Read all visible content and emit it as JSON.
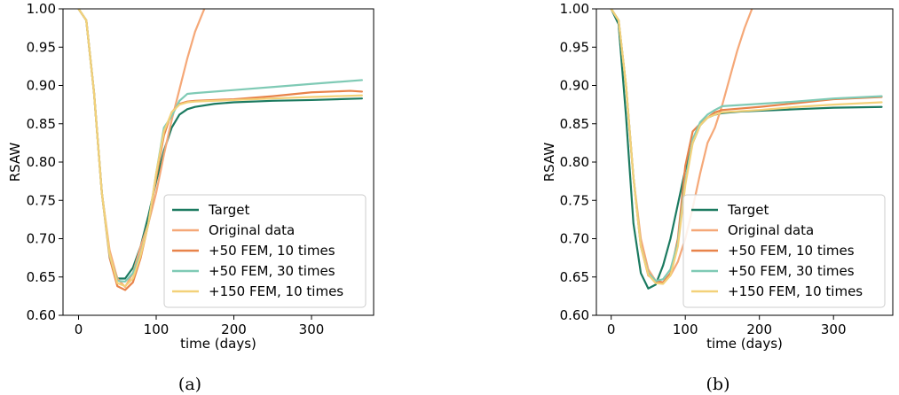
{
  "chart_data": [
    {
      "type": "line",
      "caption": "(a)",
      "xlabel": "time (days)",
      "ylabel": "RSAW",
      "xlim": [
        -20,
        380
      ],
      "ylim": [
        0.6,
        1.0
      ],
      "xticks": [
        0,
        100,
        200,
        300
      ],
      "yticks": [
        0.6,
        0.65,
        0.7,
        0.75,
        0.8,
        0.85,
        0.9,
        0.95,
        1.0
      ],
      "grid": false,
      "legend_position": "lower-right",
      "series": [
        {
          "name": "Target",
          "color": "#1b7a60",
          "x": [
            0,
            10,
            20,
            30,
            40,
            50,
            60,
            70,
            80,
            90,
            100,
            110,
            120,
            130,
            140,
            150,
            175,
            200,
            250,
            300,
            365
          ],
          "y": [
            1.0,
            0.985,
            0.89,
            0.76,
            0.68,
            0.648,
            0.648,
            0.662,
            0.69,
            0.73,
            0.775,
            0.815,
            0.845,
            0.862,
            0.869,
            0.872,
            0.876,
            0.878,
            0.88,
            0.881,
            0.883
          ]
        },
        {
          "name": "Original data",
          "color": "#f5a878",
          "x": [
            0,
            10,
            20,
            30,
            40,
            50,
            60,
            70,
            80,
            90,
            100,
            110,
            120,
            130,
            140,
            150,
            162
          ],
          "y": [
            1.0,
            0.985,
            0.89,
            0.76,
            0.685,
            0.648,
            0.637,
            0.655,
            0.69,
            0.72,
            0.76,
            0.81,
            0.855,
            0.895,
            0.935,
            0.97,
            1.0
          ]
        },
        {
          "name": "+50 FEM, 10 times",
          "color": "#e8834a",
          "x": [
            0,
            10,
            20,
            30,
            40,
            50,
            60,
            70,
            80,
            90,
            100,
            110,
            120,
            130,
            140,
            150,
            200,
            250,
            300,
            350,
            365
          ],
          "y": [
            1.0,
            0.985,
            0.89,
            0.76,
            0.675,
            0.638,
            0.633,
            0.643,
            0.675,
            0.72,
            0.78,
            0.835,
            0.865,
            0.876,
            0.879,
            0.88,
            0.882,
            0.886,
            0.891,
            0.893,
            0.892
          ]
        },
        {
          "name": "+50 FEM, 30 times",
          "color": "#7fcab5",
          "x": [
            0,
            10,
            20,
            30,
            40,
            50,
            60,
            70,
            80,
            90,
            100,
            110,
            120,
            130,
            140,
            150,
            200,
            250,
            300,
            365
          ],
          "y": [
            1.0,
            0.985,
            0.89,
            0.76,
            0.678,
            0.645,
            0.644,
            0.655,
            0.68,
            0.72,
            0.785,
            0.845,
            0.86,
            0.88,
            0.889,
            0.89,
            0.894,
            0.898,
            0.902,
            0.907
          ]
        },
        {
          "name": "+150 FEM, 10 times",
          "color": "#f3d179",
          "x": [
            0,
            10,
            20,
            30,
            40,
            50,
            60,
            70,
            80,
            90,
            100,
            110,
            120,
            130,
            140,
            150,
            200,
            250,
            300,
            365
          ],
          "y": [
            1.0,
            0.985,
            0.89,
            0.76,
            0.68,
            0.642,
            0.638,
            0.648,
            0.678,
            0.72,
            0.785,
            0.84,
            0.865,
            0.875,
            0.878,
            0.879,
            0.881,
            0.883,
            0.885,
            0.887
          ]
        }
      ]
    },
    {
      "type": "line",
      "caption": "(b)",
      "xlabel": "time (days)",
      "ylabel": "RSAW",
      "xlim": [
        -20,
        380
      ],
      "ylim": [
        0.6,
        1.0
      ],
      "xticks": [
        0,
        100,
        200,
        300
      ],
      "yticks": [
        0.6,
        0.65,
        0.7,
        0.75,
        0.8,
        0.85,
        0.9,
        0.95,
        1.0
      ],
      "grid": false,
      "legend_position": "lower-right",
      "series": [
        {
          "name": "Target",
          "color": "#1b7a60",
          "x": [
            0,
            10,
            20,
            30,
            40,
            50,
            60,
            70,
            80,
            90,
            100,
            110,
            120,
            130,
            140,
            150,
            175,
            200,
            250,
            300,
            365
          ],
          "y": [
            1.0,
            0.98,
            0.86,
            0.72,
            0.655,
            0.635,
            0.64,
            0.665,
            0.7,
            0.745,
            0.79,
            0.825,
            0.848,
            0.858,
            0.862,
            0.864,
            0.866,
            0.867,
            0.869,
            0.871,
            0.872
          ]
        },
        {
          "name": "Original data",
          "color": "#f5a878",
          "x": [
            0,
            10,
            20,
            30,
            40,
            50,
            60,
            70,
            80,
            90,
            100,
            110,
            120,
            130,
            140,
            150,
            160,
            170,
            180,
            190
          ],
          "y": [
            1.0,
            0.985,
            0.9,
            0.78,
            0.7,
            0.66,
            0.645,
            0.642,
            0.652,
            0.67,
            0.7,
            0.74,
            0.785,
            0.825,
            0.845,
            0.875,
            0.91,
            0.945,
            0.975,
            1.0
          ]
        },
        {
          "name": "+50 FEM, 10 times",
          "color": "#e8834a",
          "x": [
            0,
            10,
            20,
            30,
            40,
            50,
            60,
            70,
            80,
            90,
            100,
            110,
            120,
            130,
            140,
            150,
            200,
            250,
            300,
            365
          ],
          "y": [
            1.0,
            0.985,
            0.9,
            0.78,
            0.69,
            0.652,
            0.645,
            0.643,
            0.655,
            0.7,
            0.795,
            0.84,
            0.85,
            0.858,
            0.865,
            0.868,
            0.872,
            0.877,
            0.882,
            0.885
          ]
        },
        {
          "name": "+50 FEM, 30 times",
          "color": "#7fcab5",
          "x": [
            0,
            10,
            20,
            30,
            40,
            50,
            60,
            70,
            80,
            90,
            100,
            110,
            120,
            130,
            140,
            150,
            200,
            250,
            300,
            365
          ],
          "y": [
            1.0,
            0.985,
            0.9,
            0.78,
            0.69,
            0.655,
            0.645,
            0.647,
            0.66,
            0.695,
            0.775,
            0.83,
            0.852,
            0.862,
            0.868,
            0.873,
            0.876,
            0.879,
            0.883,
            0.886
          ]
        },
        {
          "name": "+150 FEM, 10 times",
          "color": "#f3d179",
          "x": [
            0,
            10,
            20,
            30,
            40,
            50,
            60,
            70,
            80,
            90,
            100,
            110,
            120,
            130,
            140,
            150,
            200,
            250,
            300,
            365
          ],
          "y": [
            1.0,
            0.985,
            0.9,
            0.78,
            0.69,
            0.653,
            0.642,
            0.641,
            0.652,
            0.69,
            0.77,
            0.825,
            0.848,
            0.858,
            0.862,
            0.865,
            0.868,
            0.872,
            0.875,
            0.878
          ]
        }
      ]
    }
  ]
}
